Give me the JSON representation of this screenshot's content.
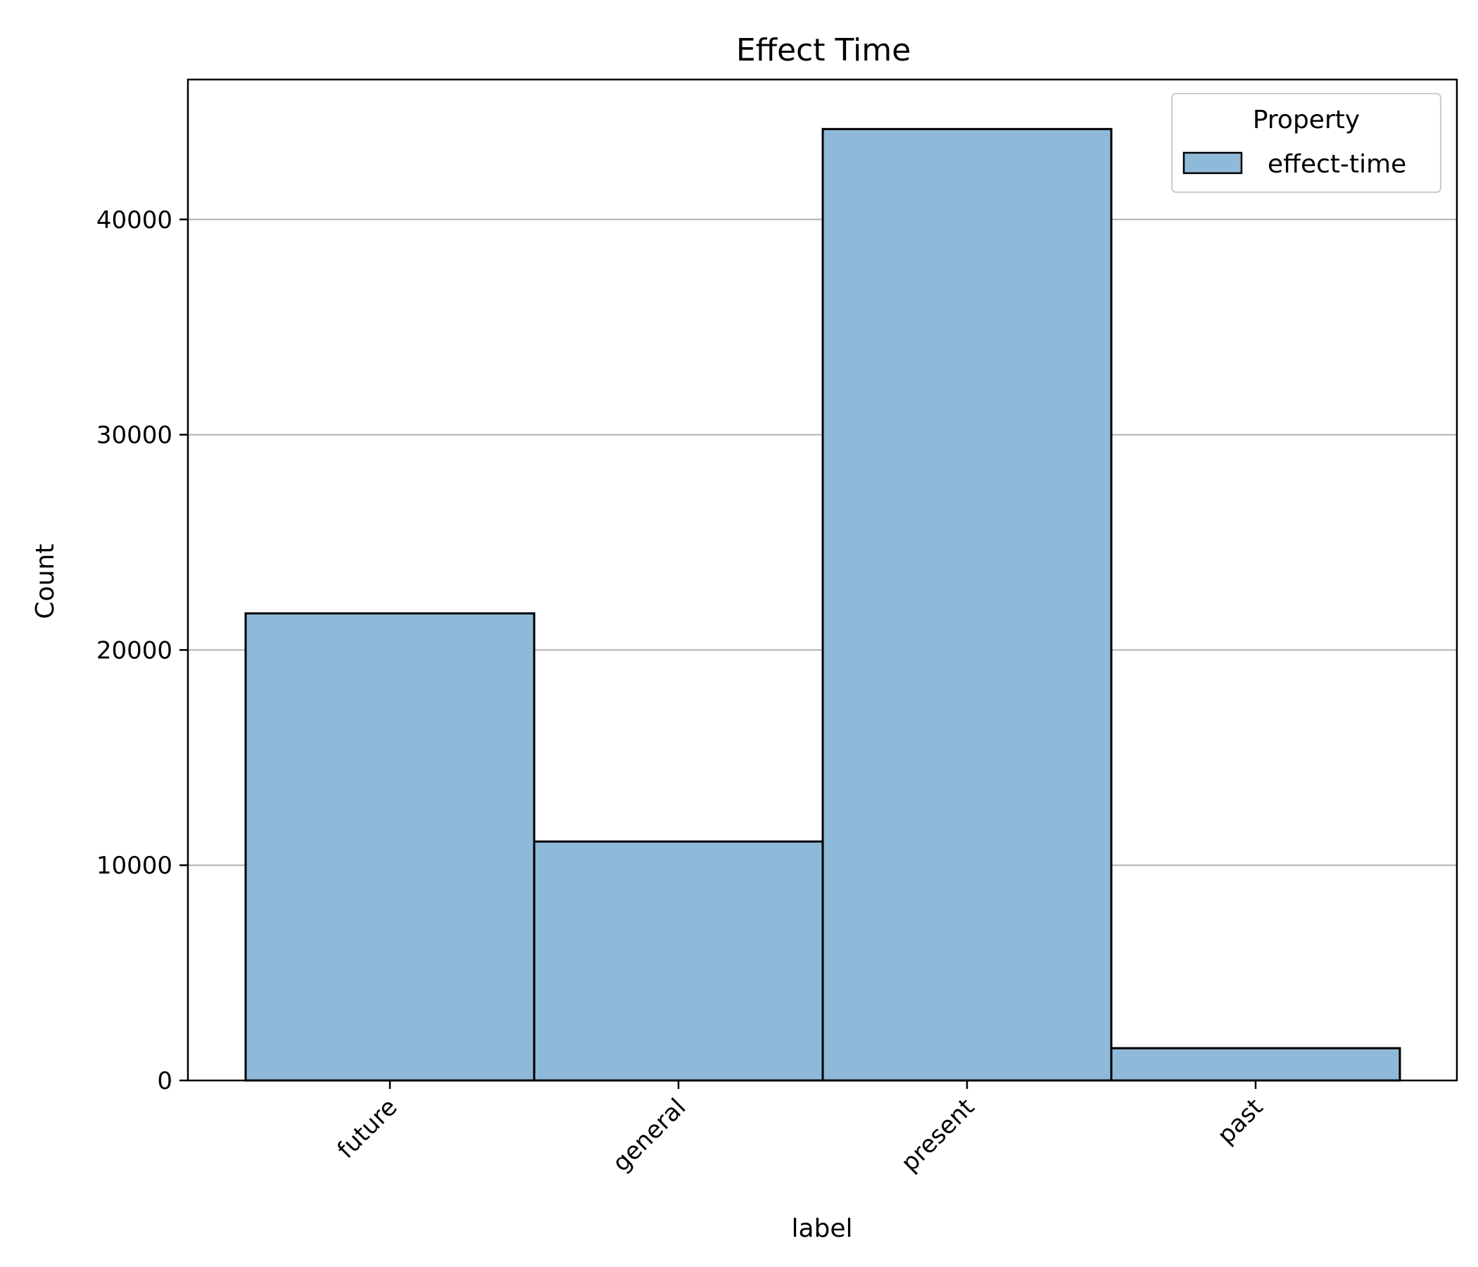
{
  "chart_data": {
    "type": "bar",
    "title": "Effect Time",
    "xlabel": "label",
    "ylabel": "Count",
    "categories": [
      "future",
      "general",
      "present",
      "past"
    ],
    "series": [
      {
        "name": "effect-time",
        "values": [
          21700,
          11100,
          44200,
          1500
        ]
      }
    ],
    "ylim": [
      0,
      46500
    ],
    "yticks": [
      0,
      10000,
      20000,
      30000,
      40000
    ],
    "ytick_labels": [
      "0",
      "10000",
      "20000",
      "30000",
      "40000"
    ],
    "grid": {
      "y": true,
      "x": false
    },
    "legend": {
      "title": "Property",
      "position": "top-right"
    },
    "colors": {
      "bar_fill": "#8fb9d8",
      "bar_edge": "#000000",
      "grid": "#b0b0b0"
    }
  }
}
